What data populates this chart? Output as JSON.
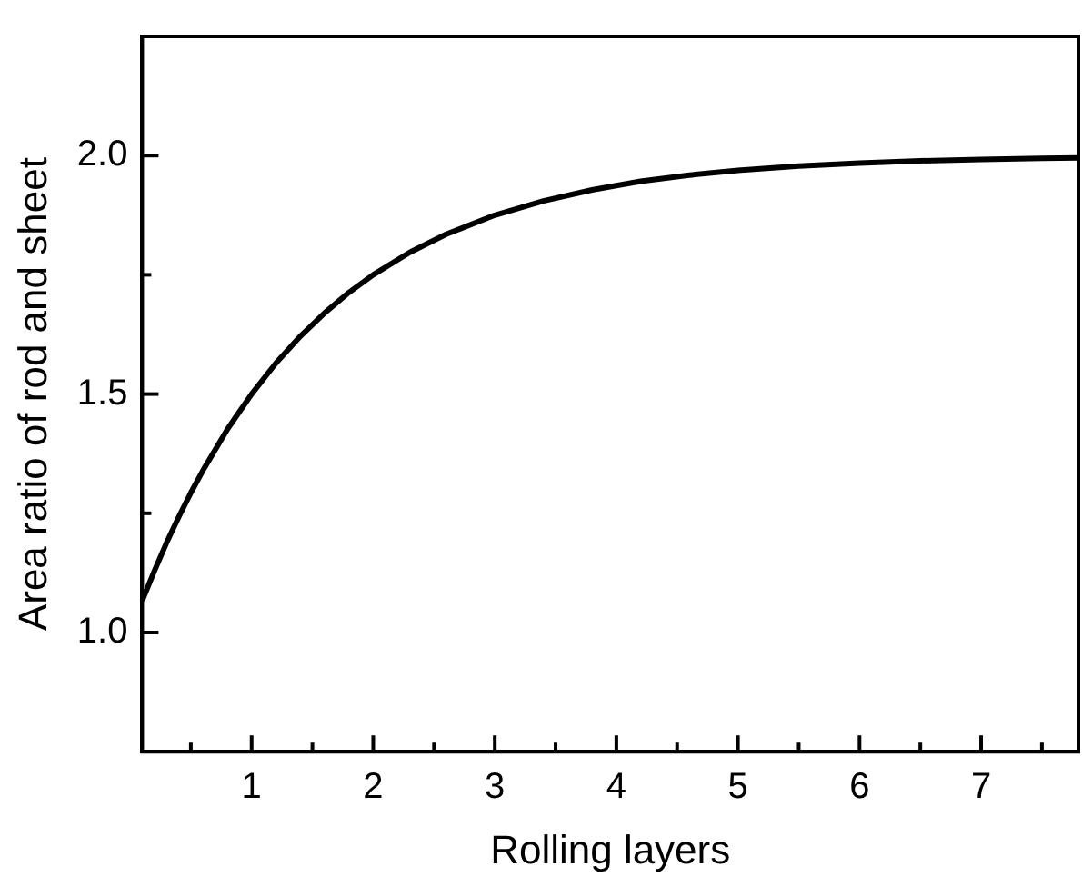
{
  "chart_data": {
    "type": "line",
    "xlabel": "Rolling layers",
    "ylabel": "Area ratio of rod and sheet",
    "x": [
      0.1,
      0.2,
      0.3,
      0.4,
      0.5,
      0.6,
      0.8,
      1.0,
      1.2,
      1.4,
      1.6,
      1.8,
      2.0,
      2.3,
      2.6,
      3.0,
      3.4,
      3.8,
      4.2,
      4.6,
      5.0,
      5.5,
      6.0,
      6.5,
      7.0,
      7.5,
      7.8
    ],
    "series": [
      {
        "color": "#000000",
        "values": [
          1.067,
          1.129,
          1.188,
          1.242,
          1.293,
          1.34,
          1.426,
          1.5,
          1.565,
          1.621,
          1.67,
          1.713,
          1.75,
          1.797,
          1.835,
          1.875,
          1.905,
          1.928,
          1.946,
          1.959,
          1.969,
          1.978,
          1.984,
          1.989,
          1.992,
          1.994,
          1.995
        ]
      }
    ],
    "xlim": [
      0.1,
      7.8
    ],
    "xticks": [
      {
        "value": 0.5,
        "label": null
      },
      1,
      {
        "value": 1.5,
        "label": null
      },
      2,
      {
        "value": 2.5,
        "label": null
      },
      3,
      {
        "value": 3.5,
        "label": null
      },
      4,
      {
        "value": 4.5,
        "label": null
      },
      5,
      {
        "value": 5.5,
        "label": null
      },
      6,
      {
        "value": 6.5,
        "label": null
      },
      7,
      {
        "value": 7.5,
        "label": null
      }
    ],
    "ylim": [
      0.75,
      2.25
    ],
    "yticks": [
      {
        "value": 1.0,
        "label": "1.0"
      },
      {
        "value": 1.25,
        "label": null
      },
      {
        "value": 1.5,
        "label": "1.5"
      },
      {
        "value": 1.75,
        "label": null
      },
      {
        "value": 2.0,
        "label": "2.0"
      }
    ],
    "grid": false,
    "legend": false,
    "marker": "none",
    "line_style": "solid"
  }
}
